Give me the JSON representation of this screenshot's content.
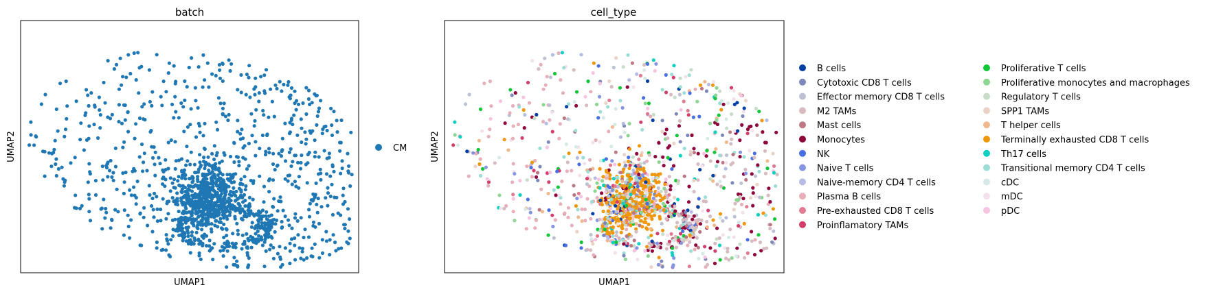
{
  "chart_data": [
    {
      "type": "scatter",
      "title": "batch",
      "xlabel": "UMAP1",
      "ylabel": "UMAP2",
      "grid": false,
      "axis_ticks": false,
      "legend_placement": "right",
      "legend": [
        {
          "label": "CM",
          "color": "#1f77b4"
        }
      ]
    },
    {
      "type": "scatter",
      "title": "cell_type",
      "xlabel": "UMAP1",
      "ylabel": "UMAP2",
      "grid": false,
      "axis_ticks": false,
      "legend_placement": "right",
      "legend": [
        {
          "label": "B cells",
          "color": "#023fa5"
        },
        {
          "label": "Cytotoxic CD8 T cells",
          "color": "#7d87b9"
        },
        {
          "label": "Effector memory CD8 T cells",
          "color": "#bec1d4"
        },
        {
          "label": "M2 TAMs",
          "color": "#d6bcc0"
        },
        {
          "label": "Mast cells",
          "color": "#bb7784"
        },
        {
          "label": "Monocytes",
          "color": "#8e063b"
        },
        {
          "label": "NK",
          "color": "#4a6fe3"
        },
        {
          "label": "Naive T cells",
          "color": "#8595e1"
        },
        {
          "label": "Naive-memory CD4 T cells",
          "color": "#b5bbe3"
        },
        {
          "label": "Plasma B cells",
          "color": "#e6afb9"
        },
        {
          "label": "Pre-exhausted CD8 T cells",
          "color": "#e07b91"
        },
        {
          "label": "Proinflamatory TAMs",
          "color": "#d33f6a"
        },
        {
          "label": "Proliferative T cells",
          "color": "#11c638"
        },
        {
          "label": "Proliferative monocytes and macrophages",
          "color": "#8dd593"
        },
        {
          "label": "Regulatory T cells",
          "color": "#c6dec7"
        },
        {
          "label": "SPP1 TAMs",
          "color": "#ead3c6"
        },
        {
          "label": "T helper cells",
          "color": "#f0b98d"
        },
        {
          "label": "Terminally exhausted CD8 T cells",
          "color": "#ef9708"
        },
        {
          "label": "Th17 cells",
          "color": "#0fcfc0"
        },
        {
          "label": "Transitional memory CD4 T cells",
          "color": "#9cded6"
        },
        {
          "label": "cDC",
          "color": "#d5eae7"
        },
        {
          "label": "mDC",
          "color": "#f3e1eb"
        },
        {
          "label": "pDC",
          "color": "#f6c4e1"
        }
      ]
    }
  ]
}
